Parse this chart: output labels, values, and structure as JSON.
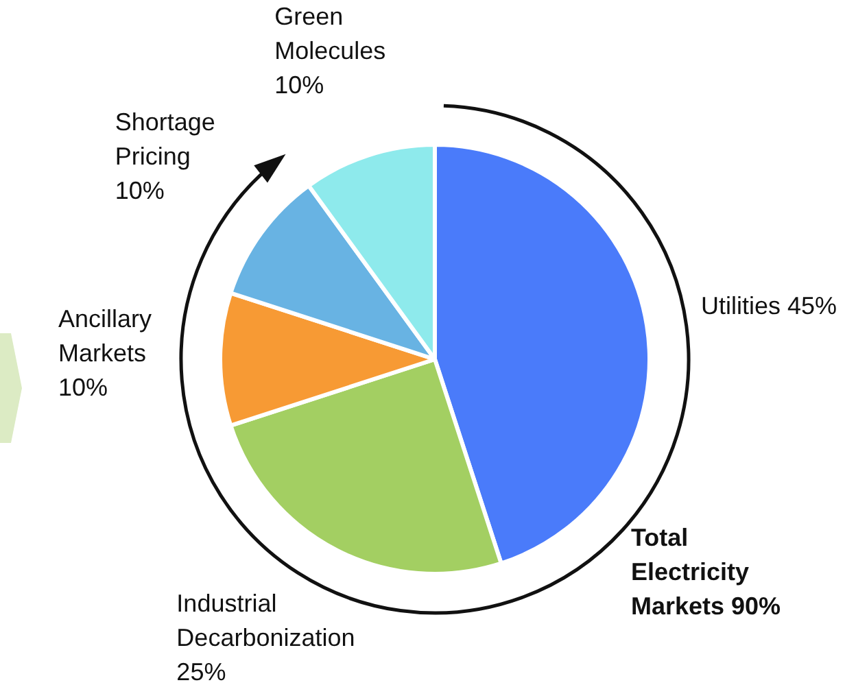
{
  "chart_data": {
    "type": "pie",
    "categories": [
      "Utilities",
      "Industrial Decarbonization",
      "Ancillary Markets",
      "Shortage Pricing",
      "Green Molecules"
    ],
    "values": [
      45,
      25,
      10,
      10,
      10
    ],
    "colors": [
      "#4a7bfa",
      "#a3cf62",
      "#f79a34",
      "#68b3e3",
      "#8eeaec"
    ],
    "value_labels": [
      "45%",
      "25%",
      "10%",
      "10%",
      "10%"
    ],
    "annotations": [
      "Total Electricity Markets 90%"
    ],
    "legend": false
  }
}
